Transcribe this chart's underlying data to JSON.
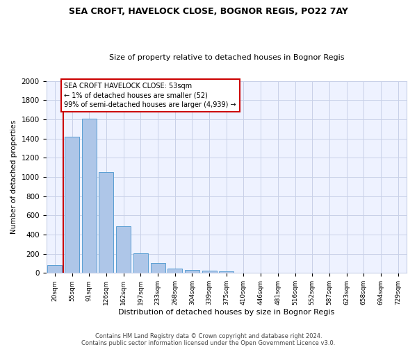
{
  "title1": "SEA CROFT, HAVELOCK CLOSE, BOGNOR REGIS, PO22 7AY",
  "title2": "Size of property relative to detached houses in Bognor Regis",
  "xlabel": "Distribution of detached houses by size in Bognor Regis",
  "ylabel": "Number of detached properties",
  "categories": [
    "20sqm",
    "55sqm",
    "91sqm",
    "126sqm",
    "162sqm",
    "197sqm",
    "233sqm",
    "268sqm",
    "304sqm",
    "339sqm",
    "375sqm",
    "410sqm",
    "446sqm",
    "481sqm",
    "516sqm",
    "552sqm",
    "587sqm",
    "623sqm",
    "658sqm",
    "694sqm",
    "729sqm"
  ],
  "values": [
    80,
    1420,
    1610,
    1050,
    490,
    205,
    105,
    47,
    35,
    25,
    20,
    0,
    0,
    0,
    0,
    0,
    0,
    0,
    0,
    0,
    0
  ],
  "bar_color": "#aec6e8",
  "bar_edge_color": "#5a9fd4",
  "annotation_title": "SEA CROFT HAVELOCK CLOSE: 53sqm",
  "annotation_line1": "← 1% of detached houses are smaller (52)",
  "annotation_line2": "99% of semi-detached houses are larger (4,939) →",
  "annotation_box_color": "#cc0000",
  "ylim": [
    0,
    2000
  ],
  "yticks": [
    0,
    200,
    400,
    600,
    800,
    1000,
    1200,
    1400,
    1600,
    1800,
    2000
  ],
  "footnote1": "Contains HM Land Registry data © Crown copyright and database right 2024.",
  "footnote2": "Contains public sector information licensed under the Open Government Licence v3.0.",
  "background_color": "#eef2ff",
  "grid_color": "#c8d0e8"
}
